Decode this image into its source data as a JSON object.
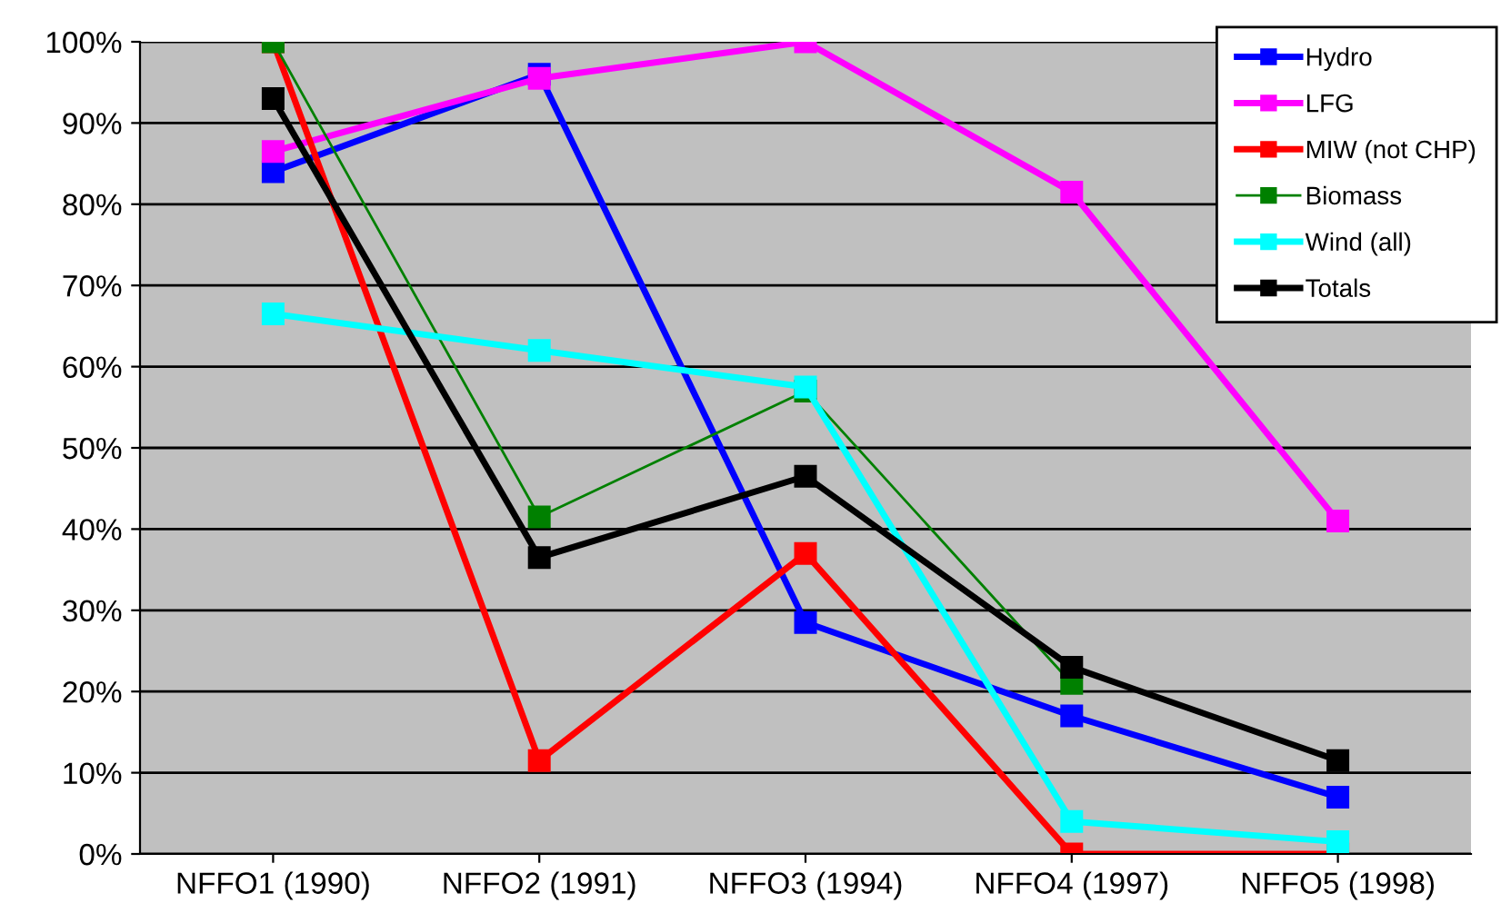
{
  "chart_data": {
    "type": "line",
    "categories": [
      "NFFO1 (1990)",
      "NFFO2 (1991)",
      "NFFO3 (1994)",
      "NFFO4 (1997)",
      "NFFO5 (1998)"
    ],
    "series": [
      {
        "name": "Hydro",
        "color": "#0000ff",
        "values": [
          84,
          96,
          28.5,
          17,
          7
        ]
      },
      {
        "name": "LFG",
        "color": "#ff00ff",
        "values": [
          86.5,
          95.5,
          100,
          81.5,
          41
        ]
      },
      {
        "name": "MIW (not CHP)",
        "color": "#ff0000",
        "values": [
          100,
          11.5,
          37,
          0,
          0
        ]
      },
      {
        "name": "Biomass",
        "color": "#008000",
        "values": [
          100,
          41.5,
          57,
          21,
          null
        ]
      },
      {
        "name": "Wind (all)",
        "color": "#00ffff",
        "values": [
          66.5,
          62,
          57.5,
          4,
          1.5
        ]
      },
      {
        "name": "Totals",
        "color": "#000000",
        "values": [
          93,
          36.5,
          46.5,
          23,
          11.5
        ]
      }
    ],
    "ylim": [
      0,
      100
    ],
    "yticks": [
      {
        "value": 0,
        "label": "0%"
      },
      {
        "value": 10,
        "label": "10%"
      },
      {
        "value": 20,
        "label": "20%"
      },
      {
        "value": 30,
        "label": "30%"
      },
      {
        "value": 40,
        "label": "40%"
      },
      {
        "value": 50,
        "label": "50%"
      },
      {
        "value": 60,
        "label": "60%"
      },
      {
        "value": 70,
        "label": "70%"
      },
      {
        "value": 80,
        "label": "80%"
      },
      {
        "value": 90,
        "label": "90%"
      },
      {
        "value": 100,
        "label": "100%"
      }
    ],
    "grid": "y",
    "legend": "top right",
    "marker": "square",
    "line_style": "solid"
  }
}
